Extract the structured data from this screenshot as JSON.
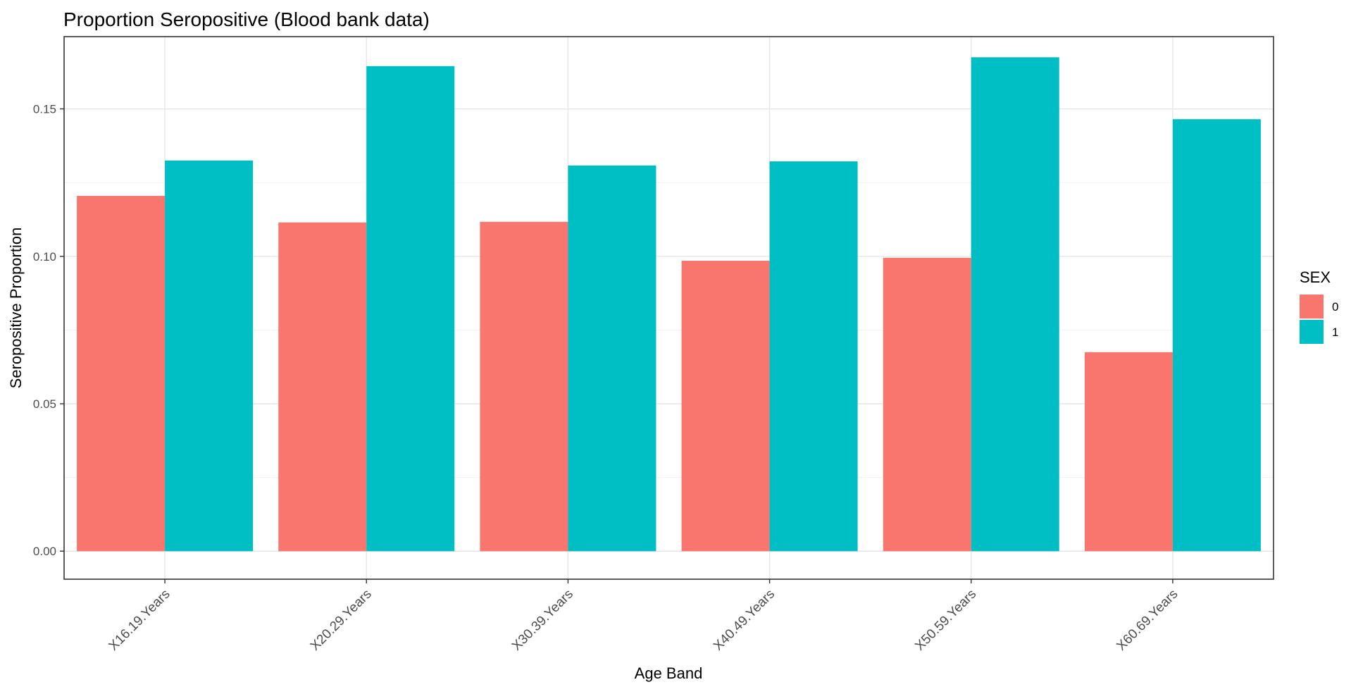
{
  "chart_data": {
    "type": "bar",
    "title": "Proportion Seropositive (Blood bank data)",
    "xlabel": "Age Band",
    "ylabel": "Seropositive Proportion",
    "categories": [
      "X16.19.Years",
      "X20.29.Years",
      "X30.39.Years",
      "X40.49.Years",
      "X50.59.Years",
      "X60.69.Years"
    ],
    "series": [
      {
        "name": "0",
        "color": "#F8766D",
        "values": [
          0.1205,
          0.1115,
          0.1117,
          0.0985,
          0.0995,
          0.0675
        ]
      },
      {
        "name": "1",
        "color": "#00BFC4",
        "values": [
          0.1325,
          0.1645,
          0.1308,
          0.1322,
          0.1675,
          0.1465
        ]
      }
    ],
    "ylim": [
      -0.0095,
      0.1745
    ],
    "yticks": [
      0.0,
      0.05,
      0.1,
      0.15
    ],
    "ytick_labels": [
      "0.00",
      "0.05",
      "0.10",
      "0.15"
    ],
    "grid": true,
    "legend": {
      "title": "SEX",
      "position": "right"
    }
  }
}
